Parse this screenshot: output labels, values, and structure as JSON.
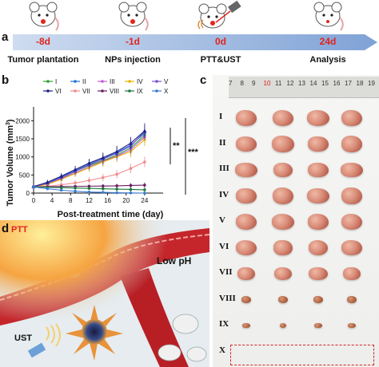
{
  "panel_a": {
    "label": "a",
    "timeline": [
      {
        "day": "-8d",
        "event": "Tumor plantation"
      },
      {
        "day": "-1d",
        "event": "NPs injection"
      },
      {
        "day": "0d",
        "event": "PTT&UST"
      },
      {
        "day": "24d",
        "event": "Analysis"
      }
    ],
    "colors": {
      "arrow": "#8eb0de",
      "day_text": "#e1241c"
    }
  },
  "panel_b": {
    "label": "b",
    "significance": [
      "**",
      "***"
    ]
  },
  "chart_data": {
    "type": "line",
    "xlabel": "Post-treatment time (day)",
    "ylabel": "Tumor Volume (mm",
    "ylabel_sup": "3",
    "ylabel_close": ")",
    "xlim": [
      0,
      28
    ],
    "ylim": [
      0,
      2250
    ],
    "x_ticks": [
      0,
      4,
      8,
      12,
      16,
      20,
      24
    ],
    "y_ticks": [
      0,
      500,
      1000,
      1500,
      2000
    ],
    "x": [
      0,
      3,
      6,
      9,
      12,
      15,
      18,
      21,
      24
    ],
    "series": [
      {
        "name": "I",
        "color": "#2ca02c",
        "marker": "circle",
        "values": [
          180,
          260,
          420,
          600,
          760,
          900,
          1050,
          1250,
          1600
        ],
        "err": 130
      },
      {
        "name": "II",
        "color": "#1f6fd1",
        "marker": "circle",
        "values": [
          180,
          280,
          450,
          620,
          800,
          950,
          1120,
          1330,
          1650
        ],
        "err": 130
      },
      {
        "name": "III",
        "color": "#c25bd4",
        "marker": "circle",
        "values": [
          180,
          250,
          400,
          560,
          720,
          880,
          1020,
          1200,
          1550
        ],
        "err": 140
      },
      {
        "name": "IV",
        "color": "#e8b400",
        "marker": "circle",
        "values": [
          170,
          240,
          380,
          540,
          700,
          860,
          1000,
          1150,
          1480
        ],
        "err": 150
      },
      {
        "name": "V",
        "color": "#7a4fd6",
        "marker": "triangle",
        "values": [
          175,
          270,
          430,
          600,
          780,
          940,
          1100,
          1300,
          1700
        ],
        "err": 200
      },
      {
        "name": "VI",
        "color": "#1a237e",
        "marker": "triangle",
        "values": [
          180,
          300,
          470,
          650,
          830,
          980,
          1150,
          1380,
          1720
        ],
        "err": 160
      },
      {
        "name": "VII",
        "color": "#f08c8c",
        "marker": "circle",
        "values": [
          170,
          190,
          230,
          280,
          350,
          430,
          520,
          680,
          860
        ],
        "err": 120
      },
      {
        "name": "VIII",
        "color": "#6b1d66",
        "marker": "circle",
        "values": [
          170,
          175,
          180,
          185,
          190,
          195,
          200,
          210,
          220
        ],
        "err": 60
      },
      {
        "name": "IX",
        "color": "#1b7a3c",
        "marker": "circle",
        "values": [
          170,
          160,
          150,
          140,
          130,
          120,
          110,
          100,
          90
        ],
        "err": 50
      },
      {
        "name": "X",
        "color": "#3a7bd5",
        "marker": "circle",
        "values": [
          170,
          120,
          80,
          50,
          30,
          20,
          10,
          5,
          0
        ],
        "err": 30
      }
    ]
  },
  "panel_c": {
    "label": "c",
    "ruler_numbers": [
      "7",
      "8",
      "9",
      "10",
      "11",
      "12",
      "13",
      "14",
      "15",
      "16",
      "17",
      "18",
      "19"
    ],
    "ruler_highlight": "10",
    "rows": [
      "I",
      "II",
      "III",
      "IV",
      "V",
      "VI",
      "VII",
      "VIII",
      "IX",
      "X"
    ],
    "tumor_size": [
      1.0,
      1.0,
      0.95,
      1.0,
      1.0,
      0.92,
      0.85,
      0.45,
      0.35,
      0
    ]
  },
  "panel_d": {
    "label": "d",
    "texts": {
      "ptt": "PTT",
      "low_ph": "Low pH",
      "ust": "UST"
    }
  }
}
